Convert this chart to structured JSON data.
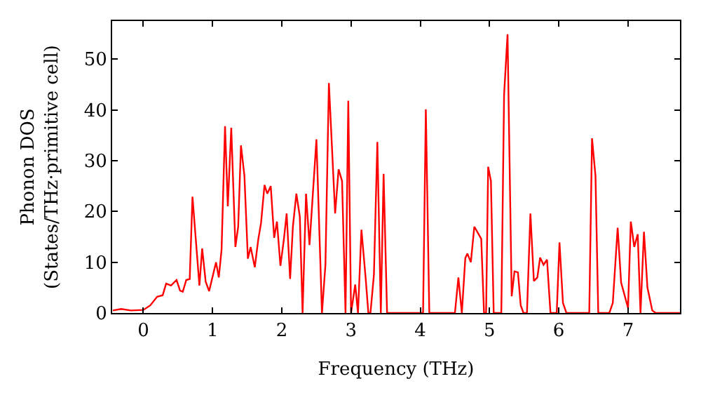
{
  "chart_data": {
    "type": "line",
    "xlabel": "Frequency (THz)",
    "ylabel": "Phonon DOS\n(States/THz·primitive cell)",
    "x": [
      -0.44,
      -0.32,
      -0.18,
      0.0,
      0.1,
      0.2,
      0.28,
      0.33,
      0.4,
      0.48,
      0.53,
      0.57,
      0.62,
      0.67,
      0.71,
      0.81,
      0.85,
      0.9,
      0.95,
      1.05,
      1.09,
      1.13,
      1.18,
      1.22,
      1.27,
      1.33,
      1.37,
      1.41,
      1.46,
      1.51,
      1.55,
      1.61,
      1.66,
      1.7,
      1.75,
      1.79,
      1.84,
      1.89,
      1.93,
      1.98,
      2.03,
      2.07,
      2.12,
      2.16,
      2.21,
      2.26,
      2.3,
      2.35,
      2.4,
      2.5,
      2.58,
      2.63,
      2.68,
      2.77,
      2.82,
      2.87,
      2.92,
      2.96,
      3.0,
      3.06,
      3.1,
      3.15,
      3.21,
      3.25,
      3.28,
      3.33,
      3.38,
      3.43,
      3.47,
      3.52,
      4.04,
      4.08,
      4.13,
      4.5,
      4.55,
      4.6,
      4.65,
      4.68,
      4.73,
      4.78,
      4.83,
      4.88,
      4.92,
      4.95,
      4.98,
      5.02,
      5.06,
      5.17,
      5.21,
      5.26,
      5.32,
      5.36,
      5.41,
      5.45,
      5.49,
      5.54,
      5.59,
      5.64,
      5.69,
      5.73,
      5.78,
      5.83,
      5.88,
      5.97,
      6.01,
      6.06,
      6.11,
      6.44,
      6.48,
      6.53,
      6.57,
      6.73,
      6.78,
      6.85,
      6.9,
      7.0,
      7.04,
      7.09,
      7.14,
      7.18,
      7.23,
      7.28,
      7.35,
      7.4,
      7.75
    ],
    "series": [
      {
        "color": "#ff0000",
        "values": [
          0.5,
          0.8,
          0.5,
          0.6,
          1.5,
          3.2,
          3.5,
          5.8,
          5.4,
          6.5,
          4.4,
          4.2,
          6.5,
          6.7,
          22.9,
          5.4,
          12.7,
          6.2,
          4.3,
          10,
          7,
          12.5,
          36.8,
          21,
          36.5,
          13,
          17,
          33,
          27,
          10.7,
          13,
          9,
          14.5,
          17.7,
          25.2,
          23.5,
          25,
          14.8,
          18,
          9.3,
          14.5,
          19.6,
          6.7,
          17,
          23.5,
          19,
          0,
          23.5,
          13.4,
          34.2,
          0,
          9.5,
          45.3,
          19.6,
          28.3,
          26,
          0,
          41.8,
          0,
          5.6,
          0,
          16.4,
          7,
          0,
          0,
          7.5,
          33.7,
          0,
          27.4,
          0,
          0,
          40.1,
          0,
          0,
          7,
          0,
          10.8,
          11.7,
          10,
          17,
          15.8,
          14.6,
          0,
          0,
          28.8,
          26,
          0,
          0,
          43,
          54.9,
          3.3,
          8.2,
          8,
          1.5,
          0,
          0,
          19.6,
          6.3,
          7,
          10.9,
          9.5,
          10.5,
          0,
          0,
          13.9,
          2,
          0,
          0,
          34.4,
          27,
          0,
          0,
          2,
          16.8,
          6,
          1,
          18,
          13,
          15.5,
          0,
          16,
          5,
          0.5,
          0,
          0
        ]
      }
    ],
    "xlim": [
      -0.45,
      7.75
    ],
    "ylim": [
      0,
      57.5
    ],
    "xticks": [
      0,
      1,
      2,
      3,
      4,
      5,
      6,
      7
    ],
    "yticks": [
      0,
      10,
      20,
      30,
      40,
      50
    ],
    "marker": "none",
    "line_style": "solid",
    "legend": false
  }
}
